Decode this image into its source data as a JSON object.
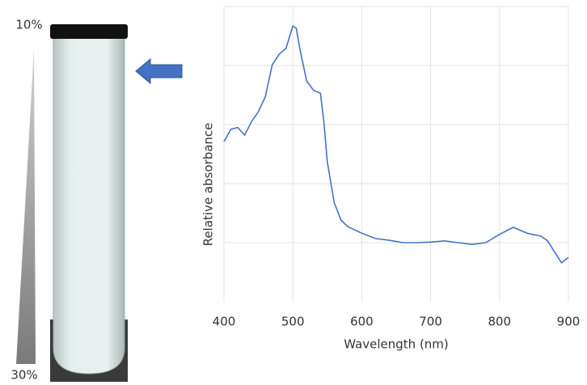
{
  "chart_data": {
    "type": "line",
    "annotations": [
      "10%",
      "30%"
    ],
    "xlabel": "Wavelength (nm)",
    "ylabel": "Relative absorbance",
    "x": [
      400,
      410,
      420,
      430,
      440,
      450,
      460,
      470,
      480,
      490,
      500,
      505,
      510,
      520,
      530,
      540,
      545,
      550,
      560,
      570,
      580,
      600,
      620,
      640,
      660,
      680,
      700,
      720,
      740,
      760,
      780,
      800,
      820,
      840,
      860,
      870,
      880,
      890,
      900
    ],
    "series": [
      {
        "color": "#4472c4",
        "values": [
          2.71,
          2.92,
          2.95,
          2.82,
          3.05,
          3.22,
          3.47,
          4.01,
          4.19,
          4.29,
          4.67,
          4.63,
          4.29,
          3.74,
          3.58,
          3.53,
          3.05,
          2.37,
          1.68,
          1.38,
          1.27,
          1.16,
          1.07,
          1.04,
          1.0,
          1.0,
          1.01,
          1.03,
          1.0,
          0.97,
          1.0,
          1.14,
          1.26,
          1.16,
          1.11,
          1.03,
          0.84,
          0.66,
          0.75
        ]
      }
    ],
    "xlim": [
      400,
      900
    ],
    "xticks": [
      400,
      500,
      600,
      700,
      800,
      900
    ],
    "ylim": [
      0,
      5
    ],
    "ygrid": [
      1,
      2,
      3,
      4,
      5
    ],
    "grid": true
  }
}
